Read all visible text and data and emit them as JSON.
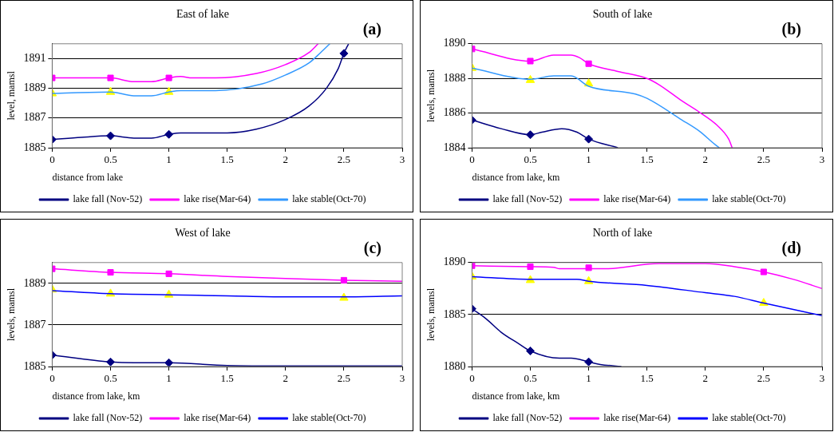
{
  "chart_data": [
    {
      "type": "line",
      "title": "East of lake",
      "xlabel": "distance from lake",
      "ylabel": "level, mamsl",
      "annotations": [
        "(a)"
      ],
      "xlim": [
        0,
        3
      ],
      "xticks": [
        0,
        0.5,
        1,
        1.5,
        2,
        2.5,
        3
      ],
      "ylim": [
        1885,
        1892
      ],
      "yticks": [
        1885,
        1887,
        1889,
        1891
      ],
      "grid": "y",
      "legend": "bottom",
      "series": [
        {
          "name": "lake fall (Nov-52)",
          "color": "#000080",
          "marker": "none",
          "x": [
            0,
            0.25,
            0.5,
            0.7,
            0.85,
            1,
            1.1,
            1.5,
            1.75,
            2,
            2.2,
            2.35,
            2.45,
            2.5,
            2.54
          ],
          "values": [
            1885.55,
            1885.7,
            1885.8,
            1885.65,
            1885.65,
            1885.9,
            1886,
            1886,
            1886.25,
            1886.9,
            1887.8,
            1889,
            1890.3,
            1891.35,
            1892
          ]
        },
        {
          "name": "lake rise(Mar-64)",
          "color": "#ff00ff",
          "marker": "none",
          "x": [
            0,
            0.5,
            0.7,
            0.85,
            1,
            1.1,
            1.2,
            1.4,
            1.75,
            2,
            2.2,
            2.28
          ],
          "values": [
            1889.7,
            1889.7,
            1889.45,
            1889.45,
            1889.7,
            1889.8,
            1889.7,
            1889.7,
            1890,
            1890.6,
            1891.4,
            1892
          ]
        },
        {
          "name": "lake stable(Oct-70)",
          "color": "#3399ff",
          "marker": "none",
          "x": [
            0,
            0.5,
            0.7,
            0.85,
            1,
            1.1,
            1.4,
            1.8,
            2,
            2.2,
            2.3,
            2.38
          ],
          "values": [
            1888.65,
            1888.75,
            1888.5,
            1888.5,
            1888.75,
            1888.85,
            1888.85,
            1889.3,
            1889.9,
            1890.7,
            1891.4,
            1892
          ]
        },
        {
          "type": "scatter",
          "color": "#000080",
          "marker": "diamond",
          "x": [
            0,
            0.5,
            1,
            2.5
          ],
          "values": [
            1885.55,
            1885.8,
            1885.9,
            1891.35
          ]
        },
        {
          "type": "scatter",
          "color": "#ff00ff",
          "marker": "square",
          "x": [
            0,
            0.5,
            1
          ],
          "values": [
            1889.7,
            1889.7,
            1889.7
          ]
        },
        {
          "type": "scatter",
          "color": "#ffff00",
          "marker": "triangle",
          "x": [
            0,
            0.5,
            1
          ],
          "values": [
            1888.65,
            1888.75,
            1888.75
          ]
        }
      ]
    },
    {
      "type": "line",
      "title": "South of lake",
      "xlabel": "distance from lake, km",
      "ylabel": "levels, mamsl",
      "annotations": [
        "(b)"
      ],
      "xlim": [
        0,
        3
      ],
      "xticks": [
        0,
        0.5,
        1,
        1.5,
        2,
        2.5,
        3
      ],
      "ylim": [
        1884,
        1890
      ],
      "yticks": [
        1884,
        1886,
        1888,
        1890
      ],
      "grid": "y",
      "legend": "bottom",
      "series": [
        {
          "name": "lake fall (Nov-52)",
          "color": "#000080",
          "marker": "none",
          "x": [
            0,
            0.25,
            0.5,
            0.6,
            0.77,
            0.9,
            1,
            1.25
          ],
          "values": [
            1885.6,
            1885.1,
            1884.75,
            1884.9,
            1885.1,
            1884.9,
            1884.5,
            1884
          ]
        },
        {
          "name": "lake rise(Mar-64)",
          "color": "#ff00ff",
          "marker": "none",
          "x": [
            0,
            0.5,
            0.7,
            0.85,
            0.92,
            1,
            1.25,
            1.5,
            1.6,
            1.8,
            1.95,
            2.1,
            2.2,
            2.23
          ],
          "values": [
            1889.7,
            1889,
            1889.35,
            1889.35,
            1889.2,
            1888.85,
            1888.4,
            1888,
            1887.65,
            1886.7,
            1886.05,
            1885.3,
            1884.5,
            1884
          ]
        },
        {
          "name": "lake stable(Oct-70)",
          "color": "#3399ff",
          "marker": "none",
          "x": [
            0,
            0.5,
            0.7,
            0.85,
            1,
            1.4,
            1.5,
            1.8,
            1.95,
            2.08,
            2.12
          ],
          "values": [
            1888.6,
            1887.95,
            1888.15,
            1888.15,
            1887.55,
            1887.1,
            1886.85,
            1885.6,
            1884.95,
            1884.2,
            1884
          ]
        },
        {
          "type": "scatter",
          "color": "#000080",
          "marker": "diamond",
          "x": [
            0,
            0.5,
            1
          ],
          "values": [
            1885.6,
            1884.75,
            1884.5
          ]
        },
        {
          "type": "scatter",
          "color": "#ff00ff",
          "marker": "square",
          "x": [
            0,
            0.5,
            1
          ],
          "values": [
            1889.7,
            1889,
            1888.85
          ]
        },
        {
          "type": "scatter",
          "color": "#ffff00",
          "marker": "triangle",
          "x": [
            0,
            0.5,
            1
          ],
          "values": [
            1888.6,
            1887.9,
            1887.7
          ]
        }
      ]
    },
    {
      "type": "line",
      "title": "West of lake",
      "xlabel": "distance from lake, km",
      "ylabel": "levels, mamsl",
      "annotations": [
        "(c)"
      ],
      "xlim": [
        0,
        3
      ],
      "xticks": [
        0,
        0.5,
        1,
        1.5,
        2,
        2.5,
        3
      ],
      "ylim": [
        1885,
        1890
      ],
      "yticks": [
        1885,
        1887,
        1889
      ],
      "grid": "y",
      "legend": "bottom",
      "series": [
        {
          "name": "lake fall (Nov-52)",
          "color": "#000080",
          "marker": "none",
          "x": [
            0,
            0.5,
            0.7,
            1,
            1.5,
            2,
            3
          ],
          "values": [
            1885.55,
            1885.22,
            1885.18,
            1885.18,
            1885.05,
            1885.03,
            1885.03
          ]
        },
        {
          "name": "lake rise(Mar-64)",
          "color": "#ff00ff",
          "marker": "none",
          "x": [
            0,
            0.5,
            1,
            1.5,
            2,
            2.5,
            3
          ],
          "values": [
            1889.7,
            1889.53,
            1889.46,
            1889.33,
            1889.23,
            1889.15,
            1889.1
          ]
        },
        {
          "name": "lake stable(Oct-70)",
          "color": "#0000ff",
          "marker": "none",
          "x": [
            0,
            0.5,
            1,
            1.5,
            2,
            2.5,
            3
          ],
          "values": [
            1888.65,
            1888.5,
            1888.45,
            1888.4,
            1888.35,
            1888.35,
            1888.4
          ]
        },
        {
          "type": "scatter",
          "color": "#000080",
          "marker": "diamond",
          "x": [
            0,
            0.5,
            1
          ],
          "values": [
            1885.55,
            1885.22,
            1885.18
          ]
        },
        {
          "type": "scatter",
          "color": "#ff00ff",
          "marker": "square",
          "x": [
            0,
            0.5,
            1,
            2.5
          ],
          "values": [
            1889.7,
            1889.53,
            1889.46,
            1889.15
          ]
        },
        {
          "type": "scatter",
          "color": "#ffff00",
          "marker": "triangle",
          "x": [
            0,
            0.5,
            1,
            2.5
          ],
          "values": [
            1888.7,
            1888.5,
            1888.45,
            1888.3
          ]
        }
      ]
    },
    {
      "type": "line",
      "title": "North of lake",
      "xlabel": "distance from lake, km",
      "ylabel": "levels, mamsl",
      "annotations": [
        "(d)"
      ],
      "xlim": [
        0,
        3
      ],
      "xticks": [
        0,
        0.5,
        1,
        1.5,
        2,
        2.5,
        3
      ],
      "ylim": [
        1880,
        1890
      ],
      "yticks": [
        1880,
        1885,
        1890
      ],
      "grid": "y",
      "legend": "bottom",
      "series": [
        {
          "name": "lake fall (Nov-52)",
          "color": "#000080",
          "marker": "none",
          "x": [
            0,
            0.12,
            0.25,
            0.4,
            0.5,
            0.75,
            0.85,
            1,
            1.1,
            1.28
          ],
          "values": [
            1885.55,
            1884.6,
            1883.3,
            1882.2,
            1881.5,
            1880.8,
            1880.8,
            1880.45,
            1880.2,
            1880
          ]
        },
        {
          "name": "lake rise(Mar-64)",
          "color": "#ff00ff",
          "marker": "none",
          "x": [
            0,
            0.5,
            0.7,
            0.75,
            1,
            1.15,
            1.6,
            2,
            2.25,
            2.5,
            2.75,
            3
          ],
          "values": [
            1889.7,
            1889.6,
            1889.55,
            1889.4,
            1889.4,
            1889.4,
            1889.9,
            1889.9,
            1889.6,
            1889.1,
            1888.4,
            1887.5
          ]
        },
        {
          "name": "lake stable(Oct-70)",
          "color": "#0000ff",
          "marker": "none",
          "x": [
            0,
            0.5,
            0.9,
            1,
            1.5,
            2,
            2.25,
            2.5,
            3
          ],
          "values": [
            1888.65,
            1888.4,
            1888.4,
            1888.2,
            1887.8,
            1887.1,
            1886.75,
            1886.1,
            1884.9
          ]
        },
        {
          "type": "scatter",
          "color": "#000080",
          "marker": "diamond",
          "x": [
            0,
            0.5,
            1
          ],
          "values": [
            1885.55,
            1881.5,
            1880.45
          ]
        },
        {
          "type": "scatter",
          "color": "#ff00ff",
          "marker": "square",
          "x": [
            0,
            0.5,
            1,
            2.5
          ],
          "values": [
            1889.7,
            1889.6,
            1889.5,
            1889.1
          ]
        },
        {
          "type": "scatter",
          "color": "#ffff00",
          "marker": "triangle",
          "x": [
            0,
            0.5,
            1,
            2.5
          ],
          "values": [
            1888.65,
            1888.3,
            1888.2,
            1886.1
          ]
        }
      ]
    }
  ]
}
